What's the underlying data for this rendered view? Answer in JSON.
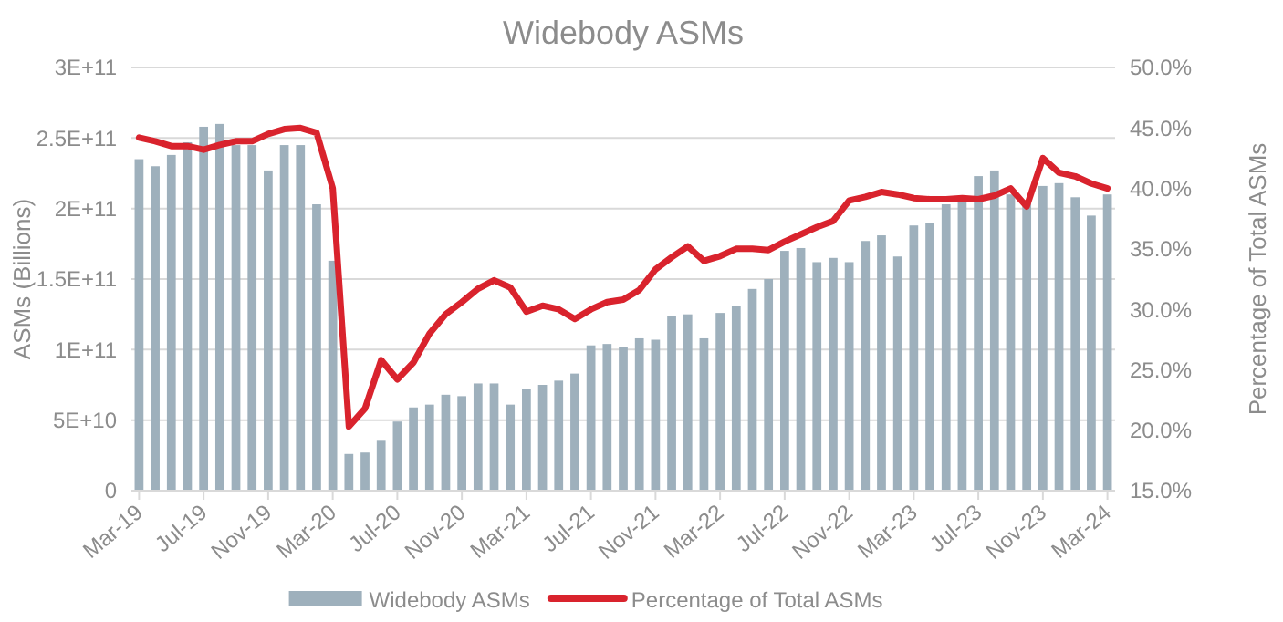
{
  "chart_data": {
    "type": "bar",
    "title": "Widebody ASMs",
    "ylabel": "ASMs (Billions)",
    "y2label": "Percentage of Total ASMs",
    "categories": [
      "Mar-19",
      null,
      null,
      null,
      "Jul-19",
      null,
      null,
      null,
      "Nov-19",
      null,
      null,
      null,
      "Mar-20",
      null,
      null,
      null,
      "Jul-20",
      null,
      null,
      null,
      "Nov-20",
      null,
      null,
      null,
      "Mar-21",
      null,
      null,
      null,
      "Jul-21",
      null,
      null,
      null,
      "Nov-21",
      null,
      null,
      null,
      "Mar-22",
      null,
      null,
      null,
      "Jul-22",
      null,
      null,
      null,
      "Nov-22",
      null,
      null,
      null,
      "Mar-23",
      null,
      null,
      null,
      "Jul-23",
      null,
      null,
      null,
      "Nov-23",
      null,
      null,
      null,
      "Mar-24"
    ],
    "series": [
      {
        "name": "Widebody ASMs",
        "color": "#9eb0bc",
        "values": [
          235000000000.0,
          230000000000.0,
          238000000000.0,
          247000000000.0,
          258000000000.0,
          260000000000.0,
          245000000000.0,
          245000000000.0,
          227000000000.0,
          245000000000.0,
          245000000000.0,
          203000000000.0,
          163000000000.0,
          26000000000.0,
          27000000000.0,
          36000000000.0,
          49000000000.0,
          59000000000.0,
          61000000000.0,
          68000000000.0,
          67000000000.0,
          76000000000.0,
          76000000000.0,
          61000000000.0,
          72000000000.0,
          75000000000.0,
          78000000000.0,
          83000000000.0,
          103000000000.0,
          104000000000.0,
          102000000000.0,
          108000000000.0,
          107000000000.0,
          124000000000.0,
          125000000000.0,
          108000000000.0,
          126000000000.0,
          131000000000.0,
          143000000000.0,
          150000000000.0,
          170000000000.0,
          172000000000.0,
          162000000000.0,
          165000000000.0,
          162000000000.0,
          177000000000.0,
          181000000000.0,
          166000000000.0,
          188000000000.0,
          190000000000.0,
          203000000000.0,
          205000000000.0,
          223000000000.0,
          227000000000.0,
          210000000000.0,
          204000000000.0,
          216000000000.0,
          218000000000.0,
          208000000000.0,
          195000000000.0,
          210000000000.0
        ]
      },
      {
        "name": "Percentage of Total ASMs",
        "type": "line",
        "axis": "y2",
        "color": "#d9232d",
        "values": [
          44.2,
          43.9,
          43.5,
          43.5,
          43.2,
          43.6,
          43.9,
          43.9,
          44.5,
          44.9,
          45.0,
          44.6,
          40.0,
          20.3,
          21.8,
          25.8,
          24.2,
          25.6,
          28.0,
          29.6,
          30.6,
          31.7,
          32.4,
          31.8,
          29.8,
          30.3,
          30.0,
          29.2,
          30.0,
          30.6,
          30.8,
          31.6,
          33.3,
          34.3,
          35.2,
          34.0,
          34.4,
          35.0,
          35.0,
          34.9,
          35.6,
          36.2,
          36.8,
          37.3,
          39.0,
          39.3,
          39.7,
          39.5,
          39.2,
          39.1,
          39.1,
          39.2,
          39.1,
          39.4,
          40.0,
          38.5,
          42.5,
          41.3,
          41.0,
          40.4,
          40.0
        ]
      }
    ],
    "ylim": [
      0,
      300000000000.0
    ],
    "yticks": [
      0,
      {
        "value": 50000000000.0,
        "label": "5E+10"
      },
      {
        "value": 100000000000.0,
        "label": "1E+11"
      },
      {
        "value": 150000000000.0,
        "label": "1.5E+11"
      },
      {
        "value": 200000000000.0,
        "label": "2E+11"
      },
      {
        "value": 250000000000.0,
        "label": "2.5E+11"
      },
      {
        "value": 300000000000.0,
        "label": "3E+11"
      }
    ],
    "y2lim": [
      15,
      50
    ],
    "y2ticks": [
      {
        "value": 15,
        "label": "15.0%"
      },
      {
        "value": 20,
        "label": "20.0%"
      },
      {
        "value": 25,
        "label": "25.0%"
      },
      {
        "value": 30,
        "label": "30.0%"
      },
      {
        "value": 35,
        "label": "35.0%"
      },
      {
        "value": 40,
        "label": "40.0%"
      },
      {
        "value": 45,
        "label": "45.0%"
      },
      {
        "value": 50,
        "label": "50.0%"
      }
    ],
    "grid": "y",
    "legend": "bottom",
    "marker": "none",
    "line_style": "solid"
  }
}
